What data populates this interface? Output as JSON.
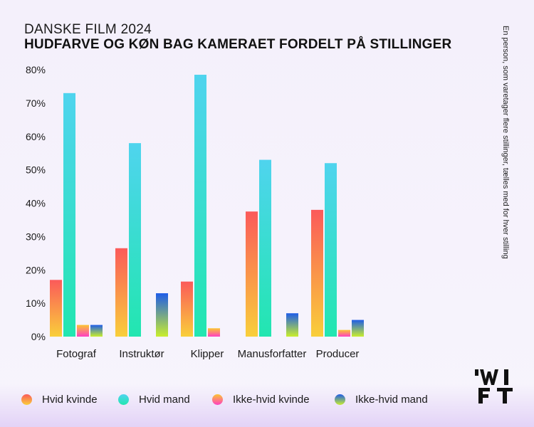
{
  "header": {
    "subtitle": "DANSKE FILM 2024",
    "title": "HUDFARVE OG KØN BAG KAMERAET FORDELT PÅ STILLINGER"
  },
  "side_note": "En person, som varetager flere stillinger, tælles med for hver stilling",
  "colors": {
    "hvid_kvinde_top": "#fb5a5a",
    "hvid_kvinde_bottom": "#f9cf3a",
    "hvid_mand_top": "#4fd4ee",
    "hvid_mand_bottom": "#22e6b0",
    "ikke_hvid_kvinde_top": "#fbc531",
    "ikke_hvid_kvinde_bottom": "#ff3fc3",
    "ikke_hvid_mand_top": "#1f5de8",
    "ikke_hvid_mand_bottom": "#c9ee2c"
  },
  "logo_icon": "wift-logo-icon",
  "chart_data": {
    "type": "bar",
    "categories": [
      "Fotograf",
      "Instruktør",
      "Klipper",
      "Manusforfatter",
      "Producer"
    ],
    "series": [
      {
        "name": "Hvid kvinde",
        "values": [
          17,
          26.5,
          16.5,
          37.5,
          38
        ]
      },
      {
        "name": "Hvid mand",
        "values": [
          73,
          58,
          78.5,
          53,
          52
        ]
      },
      {
        "name": "Ikke-hvid kvinde",
        "values": [
          3.5,
          0,
          2.5,
          0,
          2
        ]
      },
      {
        "name": "Ikke-hvid mand",
        "values": [
          3.5,
          13,
          0,
          7,
          5
        ]
      }
    ],
    "ylim": [
      0,
      80
    ],
    "yticks": [
      "0%",
      "10%",
      "20%",
      "30%",
      "40%",
      "50%",
      "60%",
      "70%",
      "80%"
    ],
    "grid": false,
    "legend": "bottom"
  }
}
